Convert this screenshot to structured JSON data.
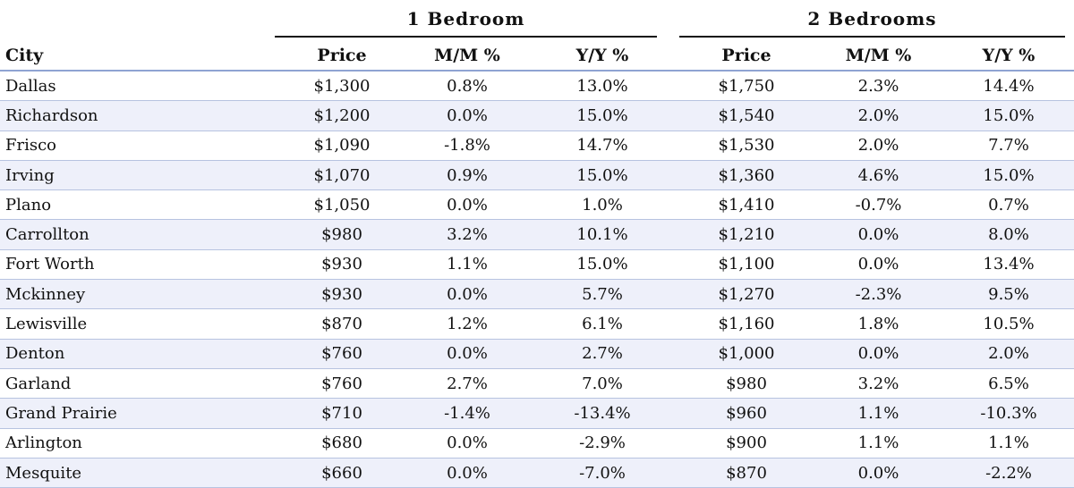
{
  "chart_data": {
    "type": "table",
    "group_headers": [
      "1 Bedroom",
      "2 Bedrooms"
    ],
    "columns": [
      "City",
      "Price",
      "M/M %",
      "Y/Y %",
      "Price",
      "M/M %",
      "Y/Y %"
    ],
    "rows": [
      [
        "Dallas",
        "$1,300",
        "0.8%",
        "13.0%",
        "$1,750",
        "2.3%",
        "14.4%"
      ],
      [
        "Richardson",
        "$1,200",
        "0.0%",
        "15.0%",
        "$1,540",
        "2.0%",
        "15.0%"
      ],
      [
        "Frisco",
        "$1,090",
        "-1.8%",
        "14.7%",
        "$1,530",
        "2.0%",
        "7.7%"
      ],
      [
        "Irving",
        "$1,070",
        "0.9%",
        "15.0%",
        "$1,360",
        "4.6%",
        "15.0%"
      ],
      [
        "Plano",
        "$1,050",
        "0.0%",
        "1.0%",
        "$1,410",
        "-0.7%",
        "0.7%"
      ],
      [
        "Carrollton",
        "$980",
        "3.2%",
        "10.1%",
        "$1,210",
        "0.0%",
        "8.0%"
      ],
      [
        "Fort Worth",
        "$930",
        "1.1%",
        "15.0%",
        "$1,100",
        "0.0%",
        "13.4%"
      ],
      [
        "Mckinney",
        "$930",
        "0.0%",
        "5.7%",
        "$1,270",
        "-2.3%",
        "9.5%"
      ],
      [
        "Lewisville",
        "$870",
        "1.2%",
        "6.1%",
        "$1,160",
        "1.8%",
        "10.5%"
      ],
      [
        "Denton",
        "$760",
        "0.0%",
        "2.7%",
        "$1,000",
        "0.0%",
        "2.0%"
      ],
      [
        "Garland",
        "$760",
        "2.7%",
        "7.0%",
        "$980",
        "3.2%",
        "6.5%"
      ],
      [
        "Grand Prairie",
        "$710",
        "-1.4%",
        "-13.4%",
        "$960",
        "1.1%",
        "-10.3%"
      ],
      [
        "Arlington",
        "$680",
        "0.0%",
        "-2.9%",
        "$900",
        "1.1%",
        "1.1%"
      ],
      [
        "Mesquite",
        "$660",
        "0.0%",
        "-7.0%",
        "$870",
        "0.0%",
        "-2.2%"
      ]
    ]
  }
}
